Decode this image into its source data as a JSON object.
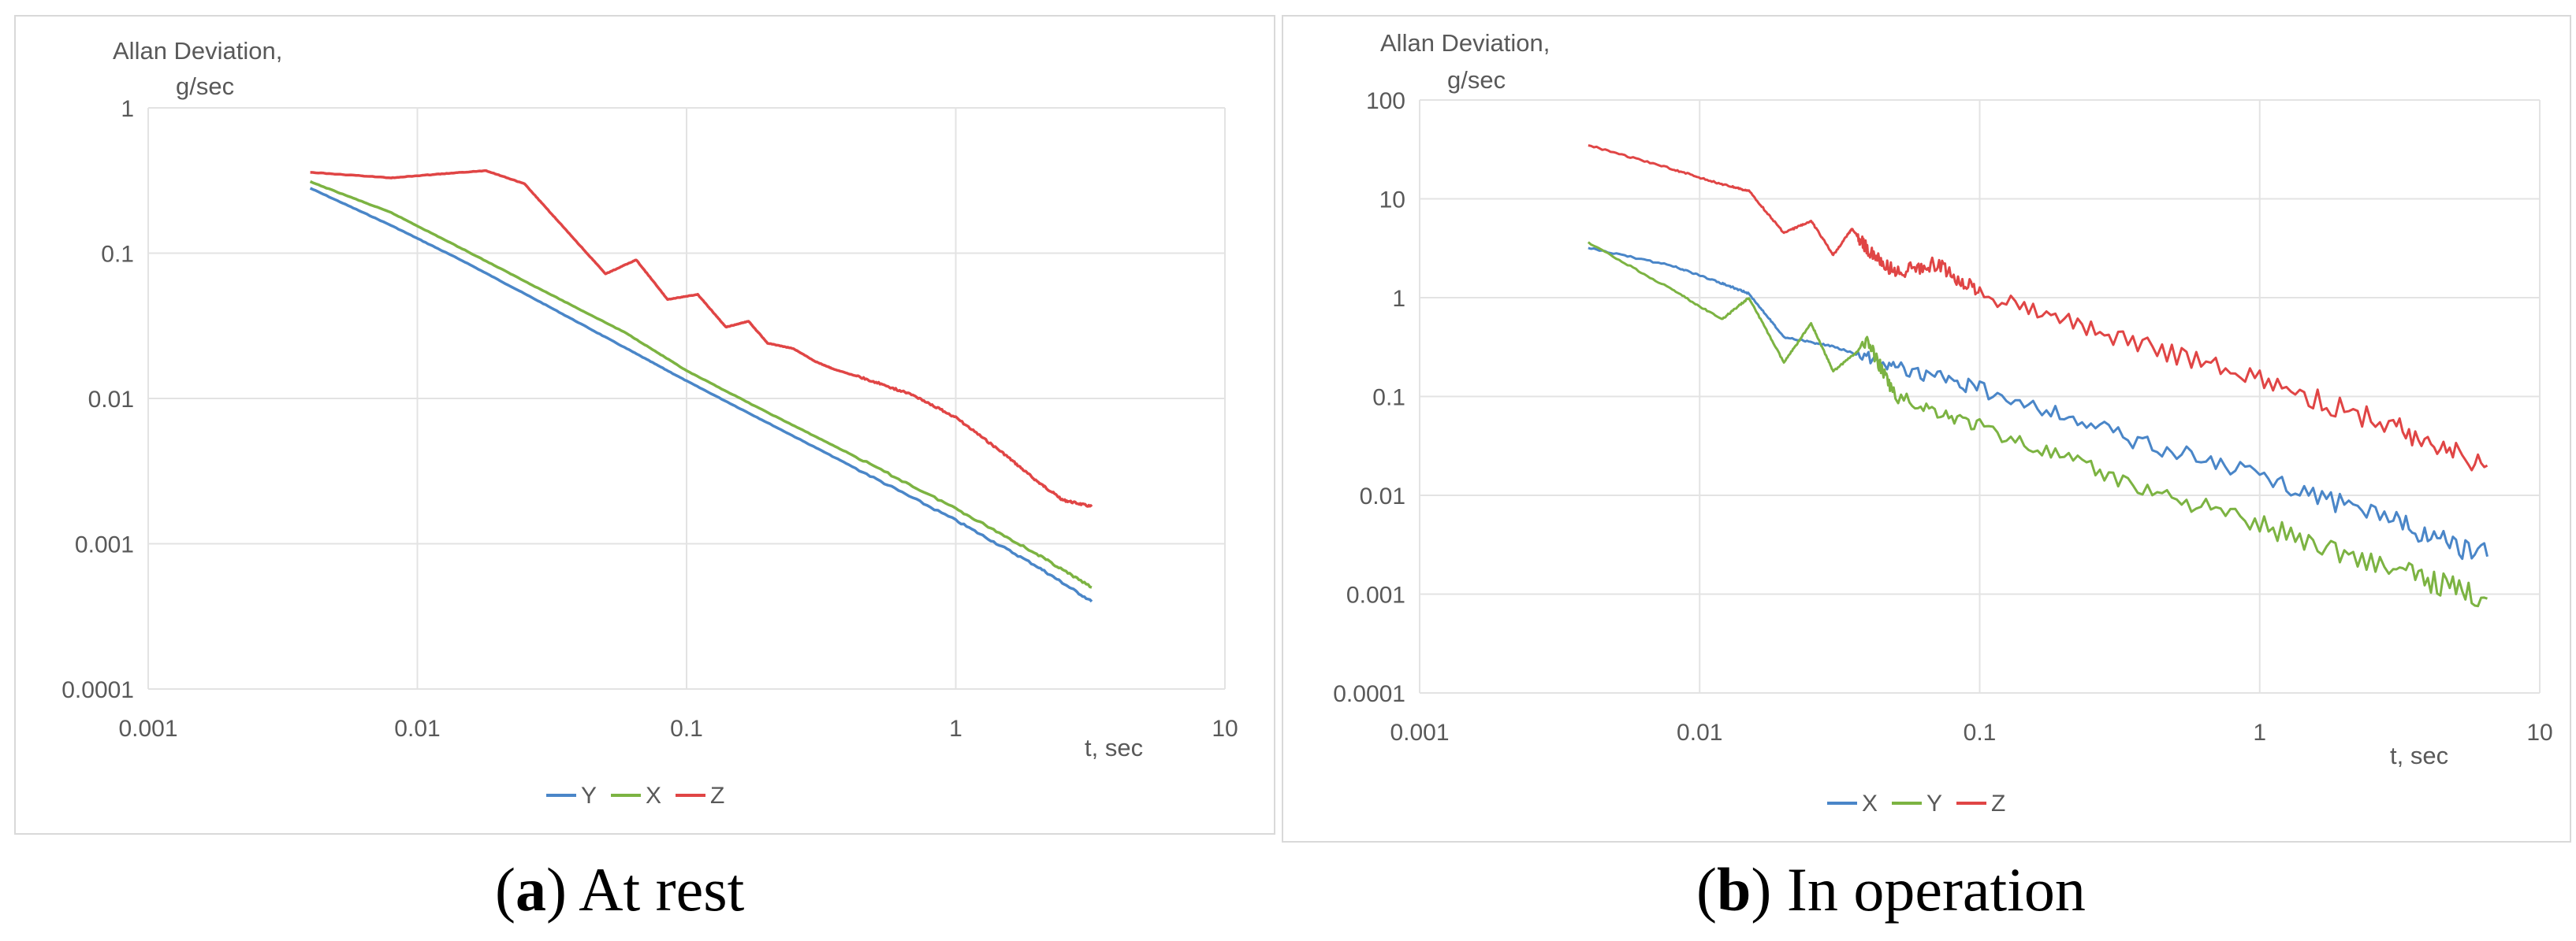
{
  "captions": [
    {
      "letter": "a",
      "text": "At rest"
    },
    {
      "letter": "b",
      "text": "In operation"
    }
  ],
  "chart_data": [
    {
      "type": "line",
      "ylabel": [
        "Allan Deviation,",
        "g/sec"
      ],
      "xlabel": "t, sec",
      "x_scale": "log",
      "y_scale": "log",
      "xlim": [
        0.001,
        10
      ],
      "ylim": [
        0.0001,
        1
      ],
      "x_ticks": [
        "0.001",
        "0.01",
        "0.1",
        "1",
        "10"
      ],
      "y_ticks": [
        "0.0001",
        "0.001",
        "0.01",
        "0.1",
        "1"
      ],
      "grid": true,
      "legend": "bottom",
      "series": [
        {
          "name": "Y",
          "color": "#4a86c8",
          "points": [
            [
              0.004,
              0.28
            ],
            [
              0.008,
              0.155
            ],
            [
              0.015,
              0.087
            ],
            [
              0.03,
              0.044
            ],
            [
              0.06,
              0.022
            ],
            [
              0.1,
              0.0132
            ],
            [
              0.2,
              0.0068
            ],
            [
              0.4,
              0.0035
            ],
            [
              1,
              0.00145
            ],
            [
              2,
              0.0007
            ],
            [
              3.2,
              0.0004
            ]
          ]
        },
        {
          "name": "X",
          "color": "#7cb342",
          "points": [
            [
              0.004,
              0.31
            ],
            [
              0.008,
              0.19
            ],
            [
              0.015,
              0.105
            ],
            [
              0.03,
              0.054
            ],
            [
              0.06,
              0.028
            ],
            [
              0.1,
              0.0155
            ],
            [
              0.2,
              0.008
            ],
            [
              0.4,
              0.0042
            ],
            [
              1,
              0.00175
            ],
            [
              2,
              0.00085
            ],
            [
              3.2,
              0.0005
            ]
          ]
        },
        {
          "name": "Z",
          "color": "#e04545",
          "points": [
            [
              0.004,
              0.36
            ],
            [
              0.008,
              0.33
            ],
            [
              0.012,
              0.35
            ],
            [
              0.018,
              0.37
            ],
            [
              0.025,
              0.3
            ],
            [
              0.035,
              0.15
            ],
            [
              0.05,
              0.072
            ],
            [
              0.065,
              0.09
            ],
            [
              0.085,
              0.048
            ],
            [
              0.11,
              0.052
            ],
            [
              0.14,
              0.031
            ],
            [
              0.17,
              0.034
            ],
            [
              0.2,
              0.024
            ],
            [
              0.25,
              0.022
            ],
            [
              0.3,
              0.018
            ],
            [
              0.35,
              0.016
            ],
            [
              0.5,
              0.013
            ],
            [
              0.7,
              0.0105
            ],
            [
              1,
              0.0074
            ],
            [
              1.5,
              0.0042
            ],
            [
              2,
              0.0027
            ],
            [
              2.5,
              0.002
            ],
            [
              3.2,
              0.0018
            ]
          ]
        }
      ]
    },
    {
      "type": "line",
      "ylabel": [
        "Allan Deviation,",
        "g/sec"
      ],
      "xlabel": "t, sec",
      "x_scale": "log",
      "y_scale": "log",
      "xlim": [
        0.001,
        10
      ],
      "ylim": [
        0.0001,
        100
      ],
      "x_ticks": [
        "0.001",
        "0.01",
        "0.1",
        "1",
        "10"
      ],
      "y_ticks": [
        "0.0001",
        "0.001",
        "0.01",
        "0.1",
        "1",
        "10",
        "100"
      ],
      "grid": true,
      "legend": "bottom",
      "series": [
        {
          "name": "X",
          "color": "#4a86c8",
          "points": [
            [
              0.004,
              3.2
            ],
            [
              0.008,
              2.1
            ],
            [
              0.012,
              1.4
            ],
            [
              0.015,
              1.1
            ],
            [
              0.02,
              0.4
            ],
            [
              0.03,
              0.32
            ],
            [
              0.05,
              0.2
            ],
            [
              0.1,
              0.12
            ],
            [
              0.3,
              0.042
            ],
            [
              1,
              0.015
            ],
            [
              3,
              0.0055
            ],
            [
              6.5,
              0.0024
            ]
          ]
        },
        {
          "name": "Y",
          "color": "#7cb342",
          "points": [
            [
              0.004,
              3.6
            ],
            [
              0.008,
              1.2
            ],
            [
              0.012,
              0.6
            ],
            [
              0.015,
              1.0
            ],
            [
              0.02,
              0.22
            ],
            [
              0.025,
              0.55
            ],
            [
              0.03,
              0.18
            ],
            [
              0.04,
              0.35
            ],
            [
              0.05,
              0.1
            ],
            [
              0.1,
              0.05
            ],
            [
              0.3,
              0.015
            ],
            [
              1,
              0.005
            ],
            [
              3,
              0.0018
            ],
            [
              6.5,
              0.0009
            ]
          ]
        },
        {
          "name": "Z",
          "color": "#e04545",
          "points": [
            [
              0.004,
              35
            ],
            [
              0.008,
              20
            ],
            [
              0.012,
              14
            ],
            [
              0.015,
              12
            ],
            [
              0.02,
              4.5
            ],
            [
              0.025,
              6
            ],
            [
              0.03,
              2.7
            ],
            [
              0.035,
              5
            ],
            [
              0.04,
              3
            ],
            [
              0.05,
              1.8
            ],
            [
              0.07,
              2.2
            ],
            [
              0.1,
              1.1
            ],
            [
              0.3,
              0.4
            ],
            [
              1,
              0.15
            ],
            [
              3,
              0.05
            ],
            [
              6.5,
              0.02
            ]
          ]
        }
      ]
    }
  ]
}
